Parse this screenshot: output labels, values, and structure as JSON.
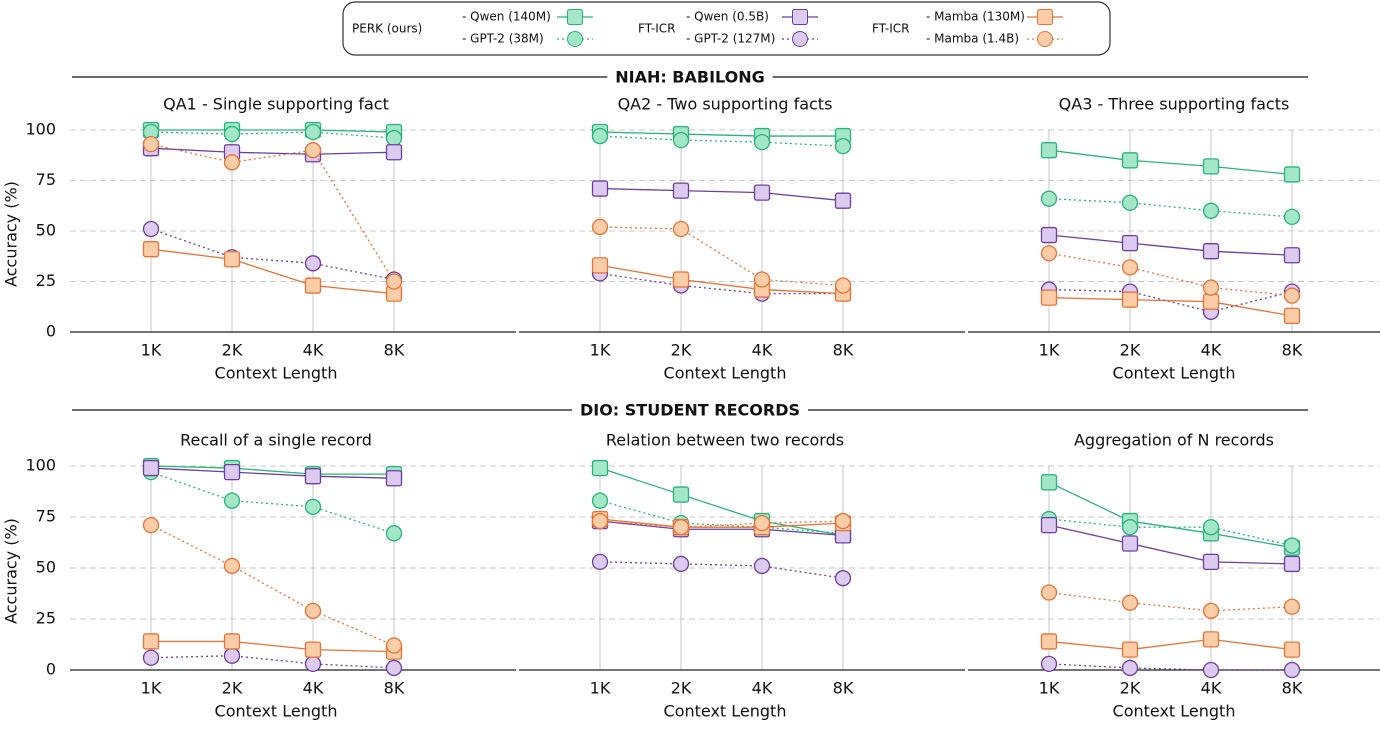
{
  "legend": {
    "groups": [
      "PERK (ours)",
      "FT-ICR",
      "FT-ICR"
    ]
  },
  "sections": [
    "NIAH: BABILONG",
    "DIO: STUDENT RECORDS"
  ],
  "chart_data": [
    {
      "type": "line",
      "title": "QA1 - Single supporting fact",
      "xlabel": "Context Length",
      "ylabel": "Accuracy (%)",
      "categories": [
        "1K",
        "2K",
        "4K",
        "8K"
      ],
      "ylim": [
        0,
        100
      ],
      "yticks": [
        0,
        25,
        50,
        75,
        100
      ],
      "ytick_labels": true,
      "grid": true,
      "series": [
        {
          "name": "- Qwen (140M)",
          "color": "#2bb37a",
          "fill": "#a3e6c8",
          "marker": "square",
          "dash": false,
          "values": [
            100,
            100,
            100,
            99
          ]
        },
        {
          "name": "- GPT-2 (38M)",
          "color": "#2bb37a",
          "fill": "#a3e6c8",
          "marker": "circle",
          "dash": true,
          "values": [
            99,
            98,
            99,
            96
          ]
        },
        {
          "name": "- Qwen (0.5B)",
          "color": "#6b3fa0",
          "fill": "#dccbef",
          "marker": "square",
          "dash": false,
          "values": [
            91,
            89,
            88,
            89
          ]
        },
        {
          "name": "- GPT-2 (127M)",
          "color": "#6b3fa0",
          "fill": "#dccbef",
          "marker": "circle",
          "dash": true,
          "values": [
            51,
            37,
            34,
            26
          ]
        },
        {
          "name": "- Mamba (130M)",
          "color": "#e6733a",
          "fill": "#fccda6",
          "marker": "square",
          "dash": false,
          "values": [
            41,
            36,
            23,
            19
          ]
        },
        {
          "name": "- Mamba (1.4B)",
          "color": "#e6733a",
          "fill": "#fccda6",
          "marker": "circle",
          "dash": true,
          "values": [
            93,
            84,
            90,
            25
          ]
        }
      ]
    },
    {
      "type": "line",
      "title": "QA2 - Two supporting facts",
      "xlabel": "Context Length",
      "categories": [
        "1K",
        "2K",
        "4K",
        "8K"
      ],
      "ylim": [
        0,
        100
      ],
      "yticks": [
        0,
        25,
        50,
        75,
        100
      ],
      "ytick_labels": false,
      "grid": true,
      "series": [
        {
          "color": "#2bb37a",
          "fill": "#a3e6c8",
          "marker": "square",
          "dash": false,
          "values": [
            99,
            98,
            97,
            97
          ]
        },
        {
          "color": "#2bb37a",
          "fill": "#a3e6c8",
          "marker": "circle",
          "dash": true,
          "values": [
            97,
            95,
            94,
            92
          ]
        },
        {
          "color": "#6b3fa0",
          "fill": "#dccbef",
          "marker": "square",
          "dash": false,
          "values": [
            71,
            70,
            69,
            65
          ]
        },
        {
          "color": "#6b3fa0",
          "fill": "#dccbef",
          "marker": "circle",
          "dash": true,
          "values": [
            29,
            23,
            19,
            19
          ]
        },
        {
          "color": "#e6733a",
          "fill": "#fccda6",
          "marker": "square",
          "dash": false,
          "values": [
            33,
            26,
            21,
            19
          ]
        },
        {
          "color": "#e6733a",
          "fill": "#fccda6",
          "marker": "circle",
          "dash": true,
          "values": [
            52,
            51,
            26,
            23
          ]
        }
      ]
    },
    {
      "type": "line",
      "title": "QA3 - Three supporting facts",
      "xlabel": "Context Length",
      "categories": [
        "1K",
        "2K",
        "4K",
        "8K"
      ],
      "ylim": [
        0,
        100
      ],
      "yticks": [
        0,
        25,
        50,
        75,
        100
      ],
      "ytick_labels": false,
      "grid": true,
      "series": [
        {
          "color": "#2bb37a",
          "fill": "#a3e6c8",
          "marker": "square",
          "dash": false,
          "values": [
            90,
            85,
            82,
            78
          ]
        },
        {
          "color": "#2bb37a",
          "fill": "#a3e6c8",
          "marker": "circle",
          "dash": true,
          "values": [
            66,
            64,
            60,
            57
          ]
        },
        {
          "color": "#6b3fa0",
          "fill": "#dccbef",
          "marker": "square",
          "dash": false,
          "values": [
            48,
            44,
            40,
            38
          ]
        },
        {
          "color": "#6b3fa0",
          "fill": "#dccbef",
          "marker": "circle",
          "dash": true,
          "values": [
            21,
            20,
            10,
            20
          ]
        },
        {
          "color": "#e6733a",
          "fill": "#fccda6",
          "marker": "square",
          "dash": false,
          "values": [
            17,
            16,
            15,
            8
          ]
        },
        {
          "color": "#e6733a",
          "fill": "#fccda6",
          "marker": "circle",
          "dash": true,
          "values": [
            39,
            32,
            22,
            18
          ]
        }
      ]
    },
    {
      "type": "line",
      "title": "Recall of a single record",
      "xlabel": "Context Length",
      "ylabel": "Accuracy (%)",
      "categories": [
        "1K",
        "2K",
        "4K",
        "8K"
      ],
      "ylim": [
        0,
        100
      ],
      "yticks": [
        0,
        25,
        50,
        75,
        100
      ],
      "ytick_labels": true,
      "grid": true,
      "series": [
        {
          "color": "#2bb37a",
          "fill": "#a3e6c8",
          "marker": "square",
          "dash": false,
          "values": [
            100,
            99,
            96,
            96
          ]
        },
        {
          "color": "#2bb37a",
          "fill": "#a3e6c8",
          "marker": "circle",
          "dash": true,
          "values": [
            97,
            83,
            80,
            67
          ]
        },
        {
          "color": "#6b3fa0",
          "fill": "#dccbef",
          "marker": "square",
          "dash": false,
          "values": [
            99,
            97,
            95,
            94
          ]
        },
        {
          "color": "#6b3fa0",
          "fill": "#dccbef",
          "marker": "circle",
          "dash": true,
          "values": [
            6,
            7,
            3,
            1
          ]
        },
        {
          "color": "#e6733a",
          "fill": "#fccda6",
          "marker": "square",
          "dash": false,
          "values": [
            14,
            14,
            10,
            9
          ]
        },
        {
          "color": "#e6733a",
          "fill": "#fccda6",
          "marker": "circle",
          "dash": true,
          "values": [
            71,
            51,
            29,
            12
          ]
        }
      ]
    },
    {
      "type": "line",
      "title": "Relation between two records",
      "xlabel": "Context Length",
      "categories": [
        "1K",
        "2K",
        "4K",
        "8K"
      ],
      "ylim": [
        0,
        100
      ],
      "yticks": [
        0,
        25,
        50,
        75,
        100
      ],
      "ytick_labels": false,
      "grid": true,
      "series": [
        {
          "color": "#2bb37a",
          "fill": "#a3e6c8",
          "marker": "square",
          "dash": false,
          "values": [
            99,
            86,
            73,
            66
          ]
        },
        {
          "color": "#2bb37a",
          "fill": "#a3e6c8",
          "marker": "circle",
          "dash": true,
          "values": [
            83,
            72,
            70,
            67
          ]
        },
        {
          "color": "#6b3fa0",
          "fill": "#dccbef",
          "marker": "square",
          "dash": false,
          "values": [
            73,
            69,
            69,
            66
          ]
        },
        {
          "color": "#6b3fa0",
          "fill": "#dccbef",
          "marker": "circle",
          "dash": true,
          "values": [
            53,
            52,
            51,
            45
          ]
        },
        {
          "color": "#e6733a",
          "fill": "#fccda6",
          "marker": "square",
          "dash": false,
          "values": [
            74,
            70,
            70,
            72
          ]
        },
        {
          "color": "#e6733a",
          "fill": "#fccda6",
          "marker": "circle",
          "dash": true,
          "values": [
            73,
            70,
            72,
            73
          ]
        }
      ]
    },
    {
      "type": "line",
      "title": "Aggregation of N records",
      "xlabel": "Context Length",
      "categories": [
        "1K",
        "2K",
        "4K",
        "8K"
      ],
      "ylim": [
        0,
        100
      ],
      "yticks": [
        0,
        25,
        50,
        75,
        100
      ],
      "ytick_labels": false,
      "grid": true,
      "series": [
        {
          "color": "#2bb37a",
          "fill": "#a3e6c8",
          "marker": "square",
          "dash": false,
          "values": [
            92,
            73,
            67,
            60
          ]
        },
        {
          "color": "#2bb37a",
          "fill": "#a3e6c8",
          "marker": "circle",
          "dash": true,
          "values": [
            74,
            70,
            70,
            61
          ]
        },
        {
          "color": "#6b3fa0",
          "fill": "#dccbef",
          "marker": "square",
          "dash": false,
          "values": [
            71,
            62,
            53,
            52
          ]
        },
        {
          "color": "#6b3fa0",
          "fill": "#dccbef",
          "marker": "circle",
          "dash": true,
          "values": [
            3,
            1,
            0,
            0
          ]
        },
        {
          "color": "#e6733a",
          "fill": "#fccda6",
          "marker": "square",
          "dash": false,
          "values": [
            14,
            10,
            15,
            10
          ]
        },
        {
          "color": "#e6733a",
          "fill": "#fccda6",
          "marker": "circle",
          "dash": true,
          "values": [
            38,
            33,
            29,
            31
          ]
        }
      ]
    }
  ]
}
